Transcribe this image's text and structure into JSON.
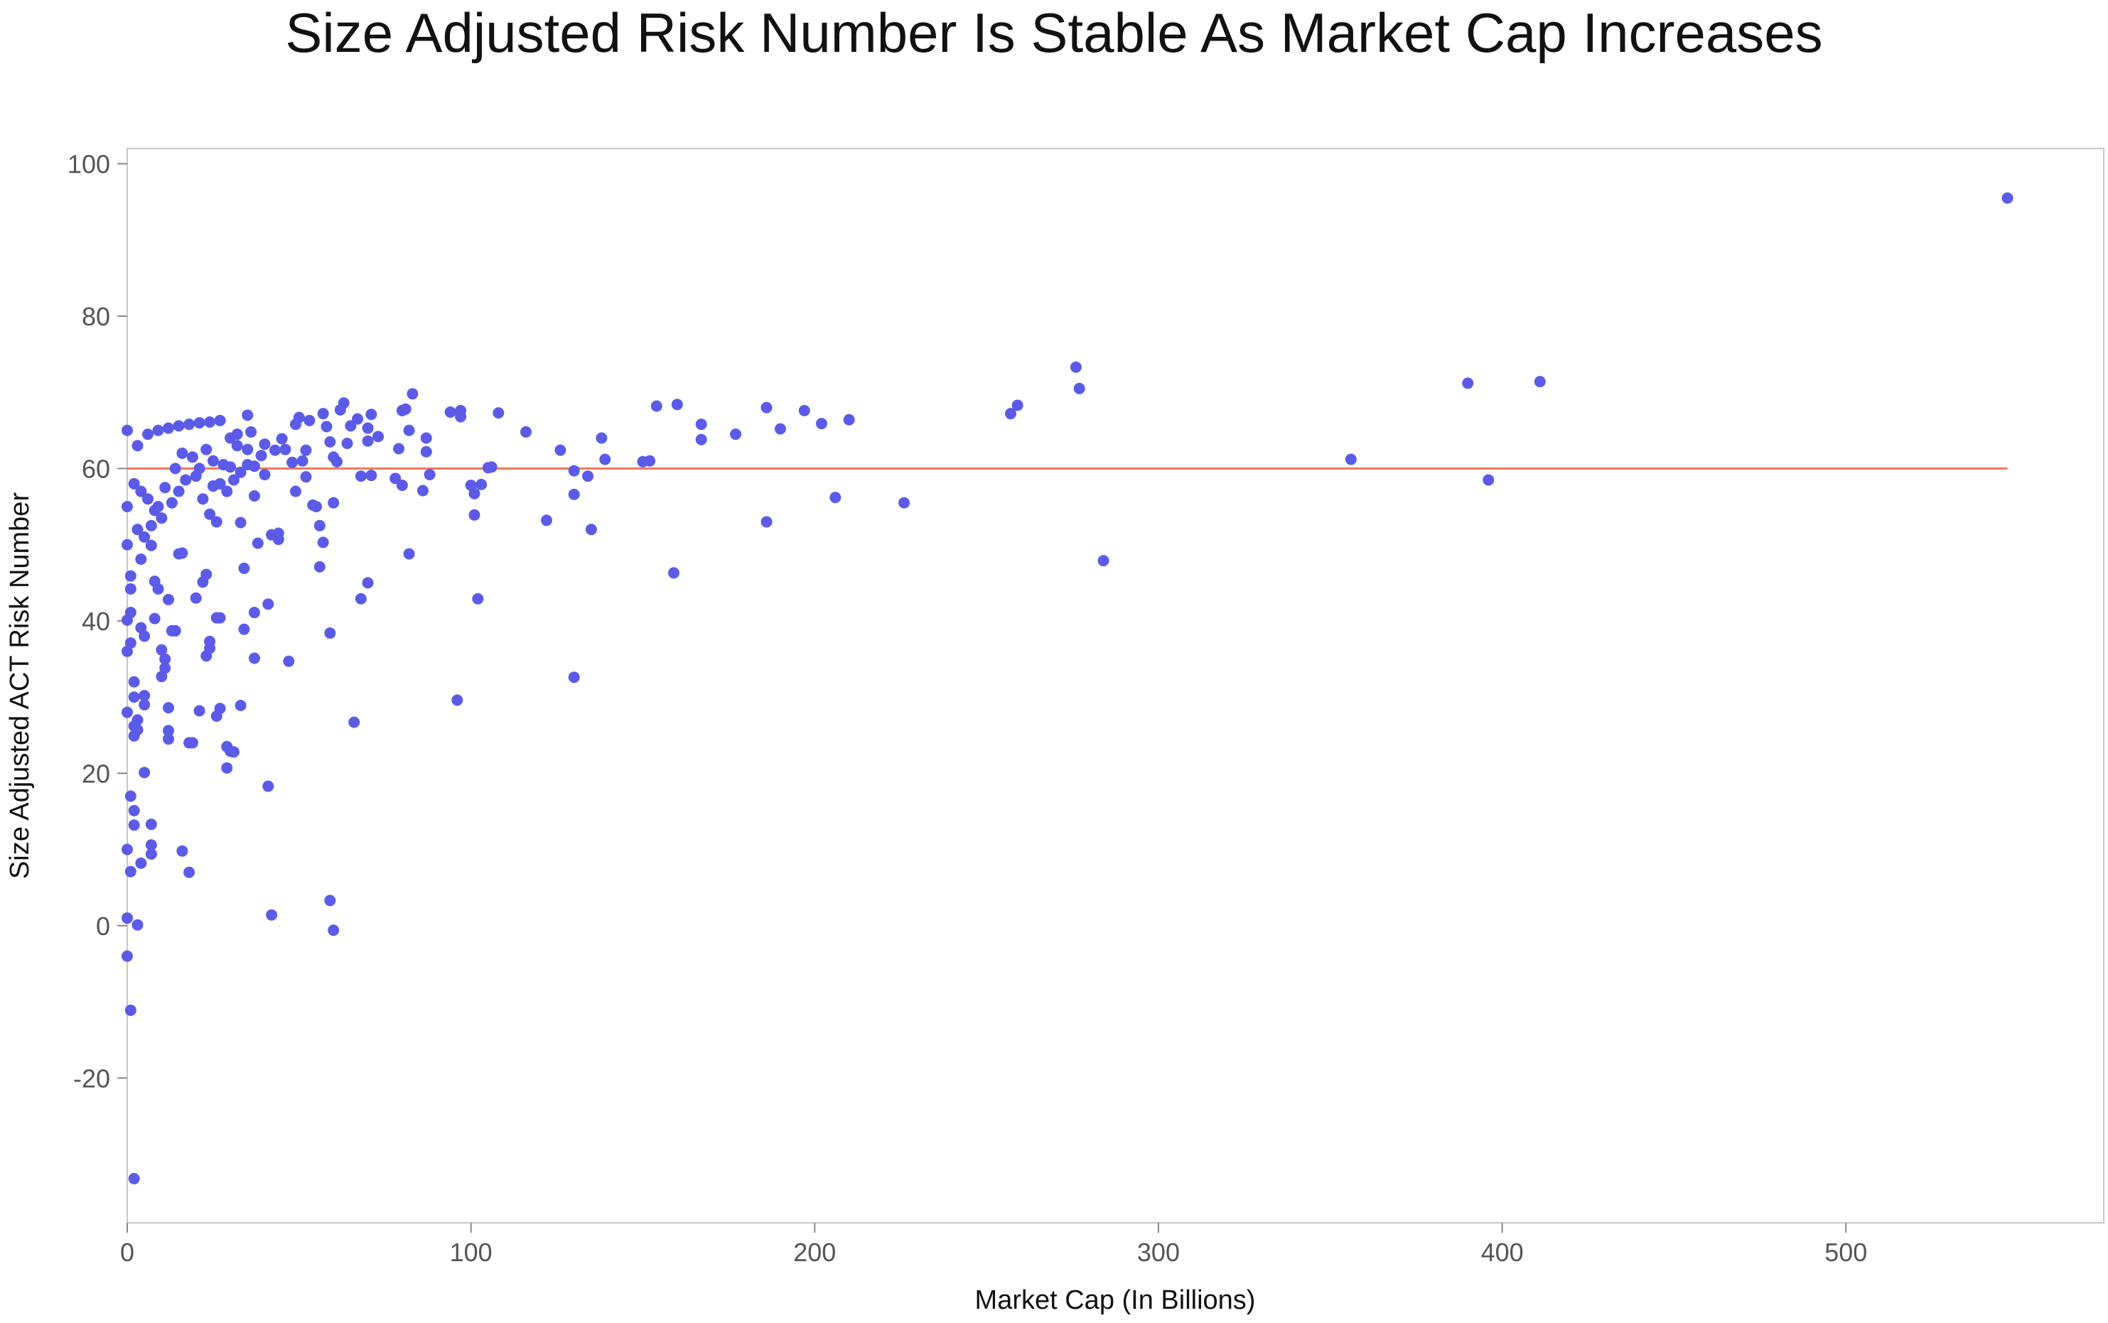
{
  "chart_data": {
    "type": "scatter",
    "title": "Size Adjusted Risk Number Is Stable As Market Cap Increases",
    "xlabel": "Market Cap (In Billions)",
    "ylabel": "Size Adjusted ACT Risk Number",
    "xlim": [
      0,
      575
    ],
    "ylim": [
      -39,
      102
    ],
    "xticks": [
      0,
      100,
      200,
      300,
      400,
      500
    ],
    "yticks": [
      -20,
      0,
      20,
      40,
      60,
      80,
      100
    ],
    "grid": false,
    "legend": "none",
    "point_color": "#5b5be8",
    "reference_line": {
      "y": 60,
      "x_start": 0,
      "x_end": 547,
      "color": "#f0765a"
    },
    "points": [
      [
        547,
        95.5
      ],
      [
        276,
        73.3
      ],
      [
        277,
        70.5
      ],
      [
        390,
        71.2
      ],
      [
        411,
        71.4
      ],
      [
        356,
        61.2
      ],
      [
        396,
        58.5
      ],
      [
        284,
        47.9
      ],
      [
        257,
        67.2
      ],
      [
        259,
        68.3
      ],
      [
        226,
        55.5
      ],
      [
        206,
        56.2
      ],
      [
        210,
        66.4
      ],
      [
        202,
        65.9
      ],
      [
        197,
        67.6
      ],
      [
        190,
        65.2
      ],
      [
        186,
        68.0
      ],
      [
        186,
        53.0
      ],
      [
        177,
        64.5
      ],
      [
        167,
        65.8
      ],
      [
        167,
        63.8
      ],
      [
        160,
        68.4
      ],
      [
        159,
        46.3
      ],
      [
        154,
        68.2
      ],
      [
        152,
        61.0
      ],
      [
        150,
        60.9
      ],
      [
        139,
        61.2
      ],
      [
        138,
        64.0
      ],
      [
        135,
        52.0
      ],
      [
        134,
        59.0
      ],
      [
        130,
        59.7
      ],
      [
        130,
        56.6
      ],
      [
        130,
        32.6
      ],
      [
        126,
        62.4
      ],
      [
        122,
        53.2
      ],
      [
        116,
        64.8
      ],
      [
        108,
        67.3
      ],
      [
        106,
        60.2
      ],
      [
        105,
        60.1
      ],
      [
        103,
        57.9
      ],
      [
        102,
        42.9
      ],
      [
        101,
        53.9
      ],
      [
        101,
        56.7
      ],
      [
        100,
        57.8
      ],
      [
        97,
        67.6
      ],
      [
        97,
        66.8
      ],
      [
        96,
        29.6
      ],
      [
        94,
        67.4
      ],
      [
        88,
        59.2
      ],
      [
        87,
        62.2
      ],
      [
        87,
        64.0
      ],
      [
        86,
        57.1
      ],
      [
        83,
        69.8
      ],
      [
        82,
        65.0
      ],
      [
        82,
        48.8
      ],
      [
        81,
        67.8
      ],
      [
        80,
        67.6
      ],
      [
        80,
        57.8
      ],
      [
        79,
        62.6
      ],
      [
        78,
        58.7
      ],
      [
        73,
        64.2
      ],
      [
        71,
        67.1
      ],
      [
        71,
        59.1
      ],
      [
        70,
        65.3
      ],
      [
        70,
        63.6
      ],
      [
        70,
        45.0
      ],
      [
        68,
        59.0
      ],
      [
        68,
        42.9
      ],
      [
        67,
        66.5
      ],
      [
        66,
        26.7
      ],
      [
        65,
        65.6
      ],
      [
        64,
        63.3
      ],
      [
        63,
        68.6
      ],
      [
        62,
        67.7
      ],
      [
        61,
        60.9
      ],
      [
        60,
        61.5
      ],
      [
        60,
        55.5
      ],
      [
        60,
        -0.6
      ],
      [
        59,
        3.3
      ],
      [
        59,
        38.4
      ],
      [
        59,
        63.5
      ],
      [
        58,
        65.5
      ],
      [
        57,
        67.2
      ],
      [
        57,
        50.3
      ],
      [
        56,
        52.5
      ],
      [
        56,
        47.1
      ],
      [
        55,
        55.0
      ],
      [
        54,
        55.2
      ],
      [
        53,
        66.3
      ],
      [
        52,
        62.4
      ],
      [
        52,
        58.9
      ],
      [
        51,
        61.0
      ],
      [
        50,
        66.7
      ],
      [
        49,
        65.8
      ],
      [
        49,
        57.0
      ],
      [
        48,
        60.8
      ],
      [
        47,
        34.7
      ],
      [
        46,
        62.5
      ],
      [
        45,
        63.9
      ],
      [
        44,
        50.7
      ],
      [
        44,
        51.5
      ],
      [
        43,
        62.4
      ],
      [
        42,
        1.4
      ],
      [
        42,
        51.3
      ],
      [
        41,
        18.3
      ],
      [
        41,
        42.2
      ],
      [
        40,
        59.2
      ],
      [
        40,
        63.2
      ],
      [
        39,
        61.7
      ],
      [
        38,
        50.2
      ],
      [
        37,
        60.3
      ],
      [
        37,
        56.4
      ],
      [
        37,
        41.1
      ],
      [
        37,
        35.1
      ],
      [
        36,
        64.8
      ],
      [
        35,
        67.0
      ],
      [
        35,
        62.5
      ],
      [
        34,
        46.9
      ],
      [
        34,
        38.9
      ],
      [
        33,
        28.9
      ],
      [
        33,
        52.9
      ],
      [
        32,
        64.5
      ],
      [
        31,
        22.8
      ],
      [
        30,
        22.9
      ],
      [
        30,
        60.2
      ],
      [
        29,
        20.7
      ],
      [
        29,
        23.5
      ],
      [
        28,
        60.5
      ],
      [
        27,
        40.4
      ],
      [
        27,
        28.5
      ],
      [
        26,
        27.5
      ],
      [
        26,
        40.4
      ],
      [
        25,
        57.7
      ],
      [
        24,
        37.3
      ],
      [
        24,
        36.4
      ],
      [
        23,
        35.4
      ],
      [
        23,
        46.1
      ],
      [
        22,
        45.1
      ],
      [
        21,
        28.2
      ],
      [
        20,
        43.0
      ],
      [
        19,
        24.0
      ],
      [
        18,
        24.0
      ],
      [
        18,
        7.0
      ],
      [
        16,
        48.9
      ],
      [
        16,
        9.8
      ],
      [
        15,
        48.8
      ],
      [
        14,
        38.7
      ],
      [
        13,
        38.7
      ],
      [
        12,
        24.5
      ],
      [
        12,
        25.6
      ],
      [
        12,
        28.6
      ],
      [
        12,
        42.8
      ],
      [
        11,
        35.0
      ],
      [
        11,
        33.8
      ],
      [
        10,
        36.2
      ],
      [
        10,
        32.7
      ],
      [
        9,
        44.2
      ],
      [
        8,
        45.2
      ],
      [
        8,
        40.3
      ],
      [
        7,
        49.9
      ],
      [
        7,
        13.3
      ],
      [
        7,
        10.6
      ],
      [
        7,
        9.4
      ],
      [
        5,
        29.0
      ],
      [
        5,
        30.2
      ],
      [
        5,
        20.1
      ],
      [
        5,
        38.0
      ],
      [
        4,
        39.1
      ],
      [
        4,
        48.1
      ],
      [
        4,
        8.2
      ],
      [
        3,
        0.1
      ],
      [
        3,
        27.0
      ],
      [
        3,
        25.7
      ],
      [
        2,
        26.2
      ],
      [
        2,
        24.9
      ],
      [
        2,
        13.2
      ],
      [
        2,
        15.1
      ],
      [
        2,
        30.0
      ],
      [
        2,
        32.0
      ],
      [
        2,
        -33.2
      ],
      [
        1,
        17.0
      ],
      [
        1,
        7.1
      ],
      [
        1,
        37.1
      ],
      [
        1,
        41.1
      ],
      [
        1,
        44.2
      ],
      [
        1,
        45.9
      ],
      [
        1,
        -11.1
      ],
      [
        0,
        1.0
      ],
      [
        0,
        -4.0
      ],
      [
        0,
        10.0
      ],
      [
        0,
        28.0
      ],
      [
        0,
        36.0
      ],
      [
        0,
        40.1
      ],
      [
        0,
        50.0
      ],
      [
        0,
        55.0
      ],
      [
        0,
        65.0
      ],
      [
        3,
        63.0
      ],
      [
        6,
        64.5
      ],
      [
        9,
        65.0
      ],
      [
        12,
        65.3
      ],
      [
        15,
        65.6
      ],
      [
        18,
        65.8
      ],
      [
        21,
        66.0
      ],
      [
        24,
        66.1
      ],
      [
        27,
        66.3
      ],
      [
        2,
        58.0
      ],
      [
        4,
        57.0
      ],
      [
        6,
        56.0
      ],
      [
        8,
        54.5
      ],
      [
        10,
        53.5
      ],
      [
        13,
        55.5
      ],
      [
        15,
        57.0
      ],
      [
        17,
        58.5
      ],
      [
        20,
        59.0
      ],
      [
        22,
        56.0
      ],
      [
        24,
        54.0
      ],
      [
        26,
        53.0
      ],
      [
        28,
        60.5
      ],
      [
        30,
        64.0
      ],
      [
        32,
        63.0
      ],
      [
        3,
        52.0
      ],
      [
        5,
        51.0
      ],
      [
        7,
        52.5
      ],
      [
        9,
        55.0
      ],
      [
        11,
        57.5
      ],
      [
        14,
        60.0
      ],
      [
        16,
        62.0
      ],
      [
        19,
        61.5
      ],
      [
        21,
        60.0
      ],
      [
        23,
        62.5
      ],
      [
        25,
        61.0
      ],
      [
        27,
        58.0
      ],
      [
        29,
        57.0
      ],
      [
        31,
        58.5
      ],
      [
        33,
        59.5
      ],
      [
        35,
        60.5
      ]
    ]
  }
}
